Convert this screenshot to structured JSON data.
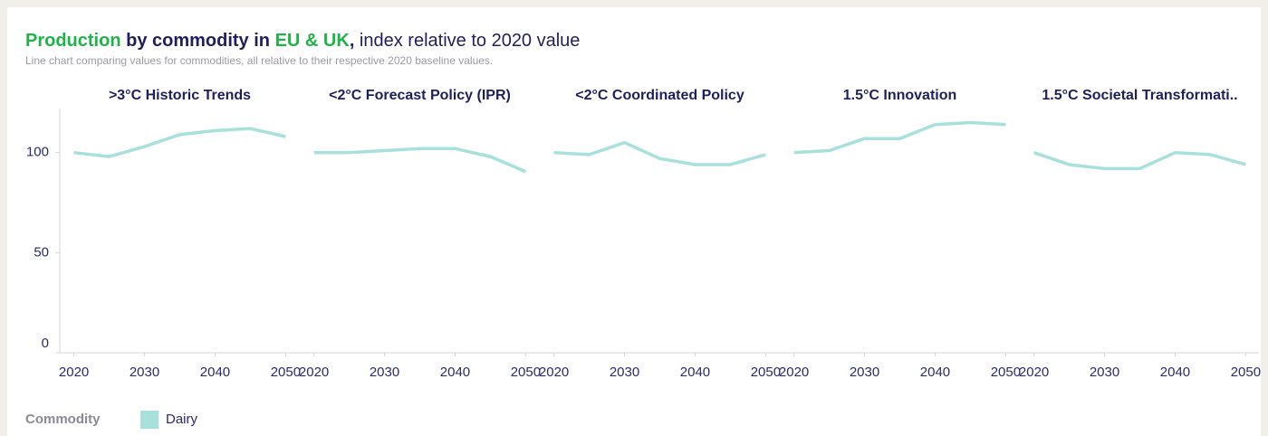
{
  "header": {
    "title_parts": [
      "Production",
      " by commodity in ",
      "EU & UK",
      ",",
      " index relative to 2020 value"
    ],
    "subtitle": "Line chart comparing values for commodities, all relative to their respective 2020 baseline values."
  },
  "legend_title": "Commodity",
  "chart_data": [
    {
      "type": "line",
      "title": ">3°C Historic Trends",
      "x": [
        2020,
        2025,
        2030,
        2035,
        2040,
        2045,
        2050
      ],
      "series": [
        {
          "name": "Dairy",
          "color": "#a8e0dc",
          "values": [
            100,
            98,
            103,
            109,
            111,
            112,
            108
          ]
        }
      ],
      "xlim": [
        2018,
        2052
      ],
      "xticks": [
        2020,
        2030,
        2040,
        2050
      ],
      "ylim": [
        0,
        122
      ],
      "yticks": [
        0,
        50,
        100
      ]
    },
    {
      "type": "line",
      "title": "<2°C Forecast Policy (IPR)",
      "x": [
        2020,
        2025,
        2030,
        2035,
        2040,
        2045,
        2050
      ],
      "series": [
        {
          "name": "Dairy",
          "color": "#a8e0dc",
          "values": [
            100,
            100,
            101,
            102,
            102,
            98,
            90.5
          ]
        }
      ],
      "xlim": [
        2018,
        2052
      ],
      "xticks": [
        2020,
        2030,
        2040,
        2050
      ],
      "ylim": [
        0,
        122
      ]
    },
    {
      "type": "line",
      "title": "<2°C Coordinated Policy",
      "x": [
        2020,
        2025,
        2030,
        2035,
        2040,
        2045,
        2050
      ],
      "series": [
        {
          "name": "Dairy",
          "color": "#a8e0dc",
          "values": [
            100,
            99,
            105,
            97,
            94,
            94,
            99
          ]
        }
      ],
      "xlim": [
        2018,
        2052
      ],
      "xticks": [
        2020,
        2030,
        2040,
        2050
      ],
      "ylim": [
        0,
        122
      ]
    },
    {
      "type": "line",
      "title": "1.5°C Innovation",
      "x": [
        2020,
        2025,
        2030,
        2035,
        2040,
        2045,
        2050
      ],
      "series": [
        {
          "name": "Dairy",
          "color": "#a8e0dc",
          "values": [
            100,
            101,
            107,
            107,
            114,
            115,
            114
          ]
        }
      ],
      "xlim": [
        2018,
        2052
      ],
      "xticks": [
        2020,
        2030,
        2040,
        2050
      ],
      "ylim": [
        0,
        122
      ]
    },
    {
      "type": "line",
      "title": "1.5°C Societal Transformati..",
      "x": [
        2020,
        2025,
        2030,
        2035,
        2040,
        2045,
        2050
      ],
      "series": [
        {
          "name": "Dairy",
          "color": "#a8e0dc",
          "values": [
            100,
            94,
            92,
            92,
            100,
            99,
            94
          ]
        }
      ],
      "xlim": [
        2018,
        2052
      ],
      "xticks": [
        2020,
        2030,
        2040,
        2050
      ],
      "ylim": [
        0,
        122
      ]
    }
  ]
}
